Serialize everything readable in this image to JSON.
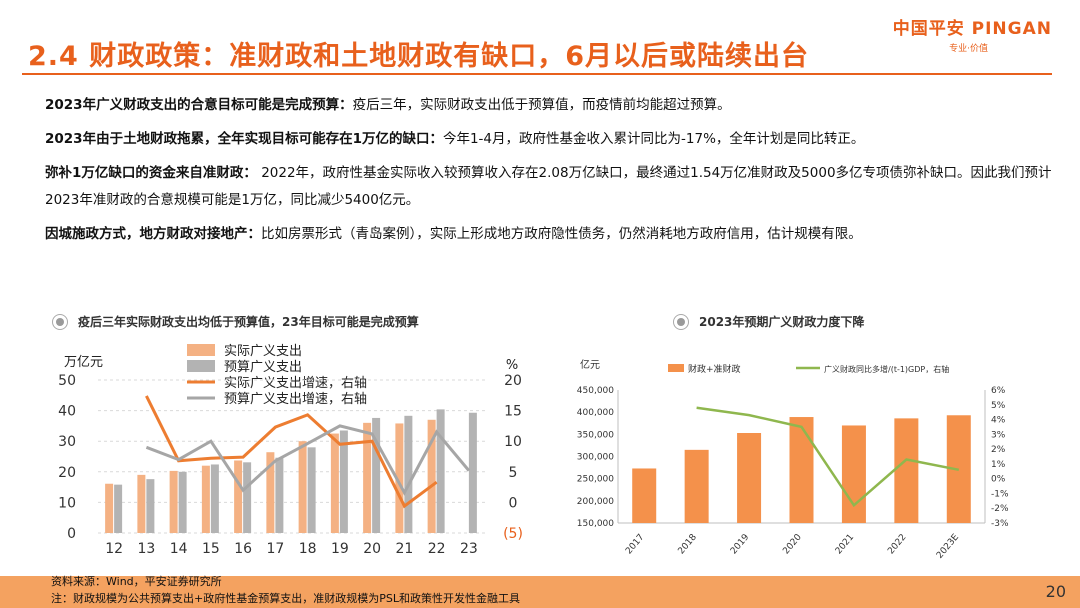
{
  "header": {
    "title": "2.4 财政政策：准财政和土地财政有缺口，6月以后或陆续出台",
    "brand": "中国平安 PINGAN",
    "brand_sub": "专业·价值"
  },
  "bullets": [
    {
      "bold": "2023年广义财政支出的合意目标可能是完成预算：",
      "text": "疫后三年，实际财政支出低于预算值，而疫情前均能超过预算。"
    },
    {
      "bold": "2023年由于土地财政拖累，全年实现目标可能存在1万亿的缺口：",
      "text": "今年1-4月，政府性基金收入累计同比为-17%，全年计划是同比转正。"
    },
    {
      "bold": "弥补1万亿缺口的资金来自准财政：",
      "text": " 2022年，政府性基金实际收入较预算收入存在2.08万亿缺口，最终通过1.54万亿准财政及5000多亿专项债弥补缺口。因此我们预计2023年准财政的合意规模可能是1万亿，同比减少5400亿元。"
    },
    {
      "bold": "因城施政方式，地方财政对接地产：",
      "text": "比如房票形式（青岛案例），实际上形成地方政府隐性债务，仍然消耗地方政府信用，估计规模有限。"
    }
  ],
  "footer": {
    "source": "资料来源：Wind，平安证券研究所",
    "note": "注：财政规模为公共预算支出+政府性基金预算支出，准财政规模为PSL和政策性开发性金融工具",
    "page": "20"
  },
  "chart_data": [
    {
      "type": "bar",
      "title": "疫后三年实际财政支出均低于预算值，23年目标可能是完成预算",
      "left_unit": "万亿元",
      "right_unit": "%",
      "categories": [
        "12",
        "13",
        "14",
        "15",
        "16",
        "17",
        "18",
        "19",
        "20",
        "21",
        "22",
        "23"
      ],
      "left_ylim": [
        0,
        50
      ],
      "left_ticks": [
        "0",
        "10",
        "20",
        "30",
        "40",
        "50"
      ],
      "right_ylim": [
        -5,
        20
      ],
      "right_ticks": [
        "(5)",
        "0",
        "5",
        "10",
        "15",
        "20"
      ],
      "series": [
        {
          "name": "实际广义支出",
          "kind": "bar",
          "axis": "left",
          "color": "#f4b183",
          "values": [
            16.1,
            19.0,
            20.3,
            22.0,
            23.7,
            26.4,
            30.0,
            32.5,
            36.0,
            35.8,
            37.0,
            null
          ]
        },
        {
          "name": "预算广义支出",
          "kind": "bar",
          "axis": "left",
          "color": "#b3b3b3",
          "values": [
            15.8,
            17.6,
            20.0,
            22.4,
            23.1,
            24.6,
            28.0,
            33.5,
            37.6,
            38.3,
            40.4,
            39.3
          ]
        },
        {
          "name": "实际广义支出增速，右轴",
          "kind": "line",
          "axis": "right",
          "color": "#ed7d31",
          "values": [
            null,
            17.4,
            6.8,
            7.2,
            7.4,
            12.3,
            14.3,
            9.5,
            10.0,
            -0.6,
            3.3,
            null
          ]
        },
        {
          "name": "预算广义支出增速，右轴",
          "kind": "line",
          "axis": "right",
          "color": "#a6a6a6",
          "values": [
            null,
            9.0,
            7.0,
            10.0,
            2.0,
            6.8,
            9.6,
            12.5,
            11.2,
            1.6,
            11.5,
            5.2
          ]
        }
      ],
      "legend": "top"
    },
    {
      "type": "bar",
      "title": "2023年预期广义财政力度下降",
      "left_unit": "亿元",
      "categories": [
        "2017",
        "2018",
        "2019",
        "2020",
        "2021",
        "2022",
        "2023E"
      ],
      "left_ylim": [
        150000,
        450000
      ],
      "left_ticks": [
        "150,000",
        "200,000",
        "250,000",
        "300,000",
        "350,000",
        "400,000",
        "450,000"
      ],
      "right_ylim": [
        -3,
        6
      ],
      "right_ticks": [
        "-3%",
        "-2%",
        "-1%",
        "0%",
        "1%",
        "2%",
        "3%",
        "4%",
        "5%",
        "6%"
      ],
      "series": [
        {
          "name": "财政+准财政",
          "kind": "bar",
          "axis": "left",
          "color": "#f4914b",
          "values": [
            273000,
            315000,
            353000,
            389000,
            370000,
            386000,
            393000
          ]
        },
        {
          "name": "广义财政同比多增/(t-1)GDP，右轴",
          "kind": "line",
          "axis": "right",
          "color": "#8fb74e",
          "values": [
            null,
            4.8,
            4.3,
            3.5,
            -1.8,
            1.3,
            0.6
          ]
        }
      ],
      "legend": "top"
    }
  ]
}
